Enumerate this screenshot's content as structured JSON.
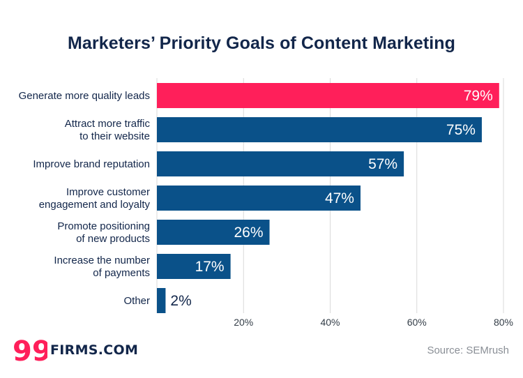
{
  "chart_data": {
    "type": "bar",
    "orientation": "horizontal",
    "title": "Marketers’ Priority Goals of Content Marketing",
    "categories": [
      [
        "Generate more quality leads"
      ],
      [
        "Attract more traffic",
        "to their website"
      ],
      [
        "Improve brand reputation"
      ],
      [
        "Improve customer",
        "engagement and loyalty"
      ],
      [
        "Promote positioning",
        "of new products"
      ],
      [
        "Increase the number",
        "of payments"
      ],
      [
        "Other"
      ]
    ],
    "values": [
      79,
      75,
      57,
      47,
      26,
      17,
      2
    ],
    "value_labels": [
      "79%",
      "75%",
      "57%",
      "47%",
      "26%",
      "17%",
      "2%"
    ],
    "highlight_index": 0,
    "xlim": [
      0,
      80
    ],
    "xticks": [
      20,
      40,
      60,
      80
    ],
    "xtick_labels": [
      "20%",
      "40%",
      "60%",
      "80%"
    ],
    "grid": true,
    "xlabel": "",
    "ylabel": ""
  },
  "colors": {
    "highlight": "#ff1f5a",
    "bar": "#0a5189",
    "title": "#12264a",
    "label": "#12264a",
    "grid": "#d9d9d9",
    "source": "#8a8f96"
  },
  "logo": {
    "icon": "99-logo-icon",
    "text": "FIRMS.COM",
    "mark": "99"
  },
  "source": "Source: SEMrush"
}
